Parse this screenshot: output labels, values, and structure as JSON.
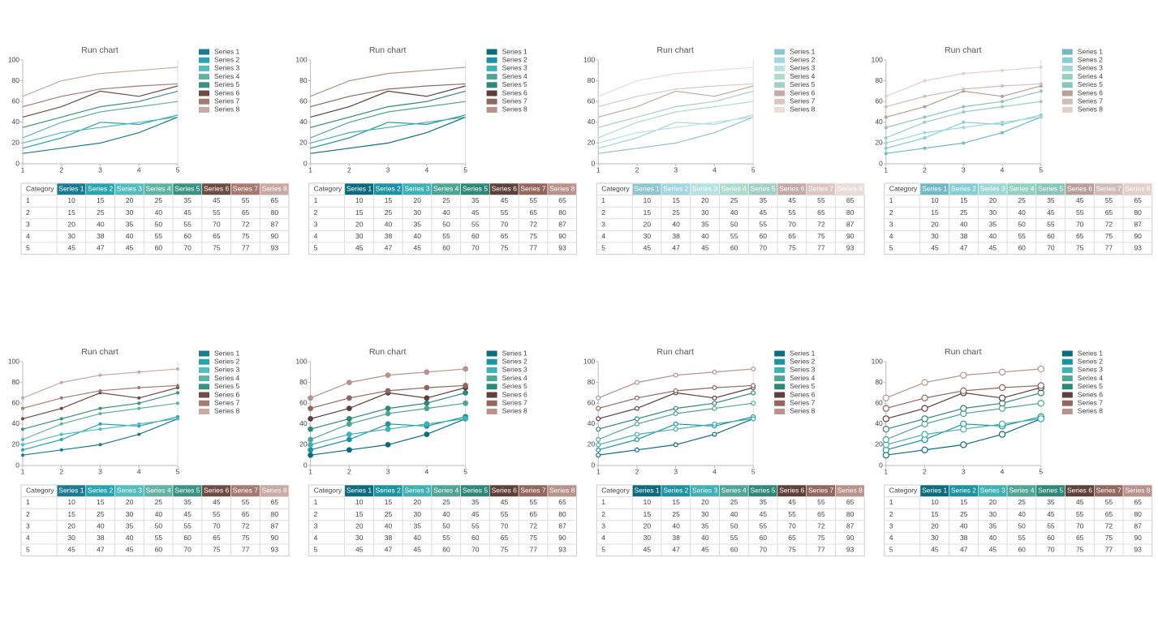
{
  "chart_data": [
    {
      "type": "line",
      "title": "Run chart",
      "table_header": "Category",
      "marker": "none",
      "x": [
        1,
        2,
        3,
        4,
        5
      ],
      "xlim": [
        1,
        5
      ],
      "xticks": [
        1,
        2,
        3,
        4,
        5
      ],
      "ylim": [
        0,
        100
      ],
      "yticks": [
        0,
        20,
        40,
        60,
        80,
        100
      ],
      "grid": false,
      "series": [
        {
          "name": "Series 1",
          "color": "#1c7b91",
          "values": [
            10,
            15,
            20,
            30,
            45
          ]
        },
        {
          "name": "Series 2",
          "color": "#2aa3b0",
          "values": [
            15,
            25,
            40,
            38,
            47
          ]
        },
        {
          "name": "Series 3",
          "color": "#52bcbf",
          "values": [
            20,
            30,
            35,
            40,
            45
          ]
        },
        {
          "name": "Series 4",
          "color": "#5fb3a3",
          "values": [
            25,
            40,
            50,
            55,
            60
          ]
        },
        {
          "name": "Series 5",
          "color": "#3a9283",
          "values": [
            35,
            45,
            55,
            60,
            70
          ]
        },
        {
          "name": "Series 6",
          "color": "#6e4c45",
          "values": [
            45,
            55,
            70,
            65,
            75
          ]
        },
        {
          "name": "Series 7",
          "color": "#a77a71",
          "values": [
            55,
            65,
            72,
            75,
            77
          ]
        },
        {
          "name": "Series 8",
          "color": "#c9a9a4",
          "values": [
            65,
            80,
            87,
            90,
            93
          ]
        }
      ]
    },
    {
      "type": "line",
      "title": "Run chart",
      "table_header": "Category",
      "marker": "none",
      "x": [
        1,
        2,
        3,
        4,
        5
      ],
      "xlim": [
        1,
        5
      ],
      "xticks": [
        1,
        2,
        3,
        4,
        5
      ],
      "ylim": [
        0,
        100
      ],
      "yticks": [
        0,
        20,
        40,
        60,
        80,
        100
      ],
      "grid": false,
      "series": [
        {
          "name": "Series 1",
          "color": "#0d6b80",
          "values": [
            10,
            15,
            20,
            30,
            45
          ]
        },
        {
          "name": "Series 2",
          "color": "#1b93a2",
          "values": [
            15,
            25,
            40,
            38,
            47
          ]
        },
        {
          "name": "Series 3",
          "color": "#3fb0b3",
          "values": [
            20,
            30,
            35,
            40,
            45
          ]
        },
        {
          "name": "Series 4",
          "color": "#4ea595",
          "values": [
            25,
            40,
            50,
            55,
            60
          ]
        },
        {
          "name": "Series 5",
          "color": "#2e8878",
          "values": [
            35,
            45,
            55,
            60,
            70
          ]
        },
        {
          "name": "Series 6",
          "color": "#5e3f39",
          "values": [
            45,
            55,
            70,
            65,
            75
          ]
        },
        {
          "name": "Series 7",
          "color": "#93675e",
          "values": [
            55,
            65,
            72,
            75,
            77
          ]
        },
        {
          "name": "Series 8",
          "color": "#b8928c",
          "values": [
            65,
            80,
            87,
            90,
            93
          ]
        }
      ]
    },
    {
      "type": "line",
      "title": "Run chart",
      "table_header": "Category",
      "marker": "none",
      "x": [
        1,
        2,
        3,
        4,
        5
      ],
      "xlim": [
        1,
        5
      ],
      "xticks": [
        1,
        2,
        3,
        4,
        5
      ],
      "ylim": [
        0,
        100
      ],
      "yticks": [
        0,
        20,
        40,
        60,
        80,
        100
      ],
      "grid": false,
      "series": [
        {
          "name": "Series 1",
          "color": "#90c4cf",
          "values": [
            10,
            15,
            20,
            30,
            45
          ]
        },
        {
          "name": "Series 2",
          "color": "#a3d6de",
          "values": [
            15,
            25,
            40,
            38,
            47
          ]
        },
        {
          "name": "Series 3",
          "color": "#b6e2e2",
          "values": [
            20,
            30,
            35,
            40,
            45
          ]
        },
        {
          "name": "Series 4",
          "color": "#addccf",
          "values": [
            25,
            40,
            50,
            55,
            60
          ]
        },
        {
          "name": "Series 5",
          "color": "#a3cfc7",
          "values": [
            35,
            45,
            55,
            60,
            70
          ]
        },
        {
          "name": "Series 6",
          "color": "#c4aaa5",
          "values": [
            45,
            55,
            70,
            65,
            75
          ]
        },
        {
          "name": "Series 7",
          "color": "#dcc6c2",
          "values": [
            55,
            65,
            72,
            75,
            77
          ]
        },
        {
          "name": "Series 8",
          "color": "#ecdcd9",
          "values": [
            65,
            80,
            87,
            90,
            93
          ]
        }
      ]
    },
    {
      "type": "line",
      "title": "Run chart",
      "table_header": "Category",
      "marker": "dot",
      "x": [
        1,
        2,
        3,
        4,
        5
      ],
      "xlim": [
        1,
        5
      ],
      "xticks": [
        1,
        2,
        3,
        4,
        5
      ],
      "ylim": [
        0,
        100
      ],
      "yticks": [
        0,
        20,
        40,
        60,
        80,
        100
      ],
      "grid": false,
      "series": [
        {
          "name": "Series 1",
          "color": "#73b8c4",
          "values": [
            10,
            15,
            20,
            30,
            45
          ]
        },
        {
          "name": "Series 2",
          "color": "#86cdd4",
          "values": [
            15,
            25,
            40,
            38,
            47
          ]
        },
        {
          "name": "Series 3",
          "color": "#9cd8d6",
          "values": [
            20,
            30,
            35,
            40,
            45
          ]
        },
        {
          "name": "Series 4",
          "color": "#94d0c2",
          "values": [
            25,
            40,
            50,
            55,
            60
          ]
        },
        {
          "name": "Series 5",
          "color": "#8cc4b9",
          "values": [
            35,
            45,
            55,
            60,
            70
          ]
        },
        {
          "name": "Series 6",
          "color": "#b8a09a",
          "values": [
            45,
            55,
            70,
            65,
            75
          ]
        },
        {
          "name": "Series 7",
          "color": "#d2bcb7",
          "values": [
            55,
            65,
            72,
            75,
            77
          ]
        },
        {
          "name": "Series 8",
          "color": "#e3cfcc",
          "values": [
            65,
            80,
            87,
            90,
            93
          ]
        }
      ]
    },
    {
      "type": "line",
      "title": "Run chart",
      "table_header": "Category",
      "marker": "dot",
      "x": [
        1,
        2,
        3,
        4,
        5
      ],
      "xlim": [
        1,
        5
      ],
      "xticks": [
        1,
        2,
        3,
        4,
        5
      ],
      "ylim": [
        0,
        100
      ],
      "yticks": [
        0,
        20,
        40,
        60,
        80,
        100
      ],
      "grid": false,
      "series": [
        {
          "name": "Series 1",
          "color": "#1c7b91",
          "values": [
            10,
            15,
            20,
            30,
            45
          ]
        },
        {
          "name": "Series 2",
          "color": "#2aa3b0",
          "values": [
            15,
            25,
            40,
            38,
            47
          ]
        },
        {
          "name": "Series 3",
          "color": "#52bcbf",
          "values": [
            20,
            30,
            35,
            40,
            45
          ]
        },
        {
          "name": "Series 4",
          "color": "#5fb3a3",
          "values": [
            25,
            40,
            50,
            55,
            60
          ]
        },
        {
          "name": "Series 5",
          "color": "#3a9283",
          "values": [
            35,
            45,
            55,
            60,
            70
          ]
        },
        {
          "name": "Series 6",
          "color": "#6e4c45",
          "values": [
            45,
            55,
            70,
            65,
            75
          ]
        },
        {
          "name": "Series 7",
          "color": "#a77a71",
          "values": [
            55,
            65,
            72,
            75,
            77
          ]
        },
        {
          "name": "Series 8",
          "color": "#c9a9a4",
          "values": [
            65,
            80,
            87,
            90,
            93
          ]
        }
      ]
    },
    {
      "type": "line",
      "title": "Run chart",
      "table_header": "Category",
      "marker": "big-dot",
      "x": [
        1,
        2,
        3,
        4,
        5
      ],
      "xlim": [
        1,
        5
      ],
      "xticks": [
        1,
        2,
        3,
        4,
        5
      ],
      "ylim": [
        0,
        100
      ],
      "yticks": [
        0,
        20,
        40,
        60,
        80,
        100
      ],
      "grid": false,
      "series": [
        {
          "name": "Series 1",
          "color": "#0d6b80",
          "values": [
            10,
            15,
            20,
            30,
            45
          ]
        },
        {
          "name": "Series 2",
          "color": "#1b93a2",
          "values": [
            15,
            25,
            40,
            38,
            47
          ]
        },
        {
          "name": "Series 3",
          "color": "#3fb0b3",
          "values": [
            20,
            30,
            35,
            40,
            45
          ]
        },
        {
          "name": "Series 4",
          "color": "#4ea595",
          "values": [
            25,
            40,
            50,
            55,
            60
          ]
        },
        {
          "name": "Series 5",
          "color": "#2e8878",
          "values": [
            35,
            45,
            55,
            60,
            70
          ]
        },
        {
          "name": "Series 6",
          "color": "#5e3f39",
          "values": [
            45,
            55,
            70,
            65,
            75
          ]
        },
        {
          "name": "Series 7",
          "color": "#93675e",
          "values": [
            55,
            65,
            72,
            75,
            77
          ]
        },
        {
          "name": "Series 8",
          "color": "#b8928c",
          "values": [
            65,
            80,
            87,
            90,
            93
          ]
        }
      ]
    },
    {
      "type": "line",
      "title": "Run chart",
      "table_header": "Category",
      "marker": "ring",
      "x": [
        1,
        2,
        3,
        4,
        5
      ],
      "xlim": [
        1,
        5
      ],
      "xticks": [
        1,
        2,
        3,
        4,
        5
      ],
      "ylim": [
        0,
        100
      ],
      "yticks": [
        0,
        20,
        40,
        60,
        80,
        100
      ],
      "grid": false,
      "series": [
        {
          "name": "Series 1",
          "color": "#0d6b80",
          "values": [
            10,
            15,
            20,
            30,
            45
          ]
        },
        {
          "name": "Series 2",
          "color": "#1b93a2",
          "values": [
            15,
            25,
            40,
            38,
            47
          ]
        },
        {
          "name": "Series 3",
          "color": "#3fb0b3",
          "values": [
            20,
            30,
            35,
            40,
            45
          ]
        },
        {
          "name": "Series 4",
          "color": "#4ea595",
          "values": [
            25,
            40,
            50,
            55,
            60
          ]
        },
        {
          "name": "Series 5",
          "color": "#2e8878",
          "values": [
            35,
            45,
            55,
            60,
            70
          ]
        },
        {
          "name": "Series 6",
          "color": "#5e3f39",
          "values": [
            45,
            55,
            70,
            65,
            75
          ]
        },
        {
          "name": "Series 7",
          "color": "#93675e",
          "values": [
            55,
            65,
            72,
            75,
            77
          ]
        },
        {
          "name": "Series 8",
          "color": "#b8928c",
          "values": [
            65,
            80,
            87,
            90,
            93
          ]
        }
      ]
    },
    {
      "type": "line",
      "title": "Run chart",
      "table_header": "Category",
      "marker": "big-ring",
      "x": [
        1,
        2,
        3,
        4,
        5
      ],
      "xlim": [
        1,
        5
      ],
      "xticks": [
        1,
        2,
        3,
        4,
        5
      ],
      "ylim": [
        0,
        100
      ],
      "yticks": [
        0,
        20,
        40,
        60,
        80,
        100
      ],
      "grid": false,
      "series": [
        {
          "name": "Series 1",
          "color": "#0d6b80",
          "values": [
            10,
            15,
            20,
            30,
            45
          ]
        },
        {
          "name": "Series 2",
          "color": "#1b93a2",
          "values": [
            15,
            25,
            40,
            38,
            47
          ]
        },
        {
          "name": "Series 3",
          "color": "#3fb0b3",
          "values": [
            20,
            30,
            35,
            40,
            45
          ]
        },
        {
          "name": "Series 4",
          "color": "#4ea595",
          "values": [
            25,
            40,
            50,
            55,
            60
          ]
        },
        {
          "name": "Series 5",
          "color": "#2e8878",
          "values": [
            35,
            45,
            55,
            60,
            70
          ]
        },
        {
          "name": "Series 6",
          "color": "#5e3f39",
          "values": [
            45,
            55,
            70,
            65,
            75
          ]
        },
        {
          "name": "Series 7",
          "color": "#93675e",
          "values": [
            55,
            65,
            72,
            75,
            77
          ]
        },
        {
          "name": "Series 8",
          "color": "#b8928c",
          "values": [
            65,
            80,
            87,
            90,
            93
          ]
        }
      ]
    }
  ]
}
